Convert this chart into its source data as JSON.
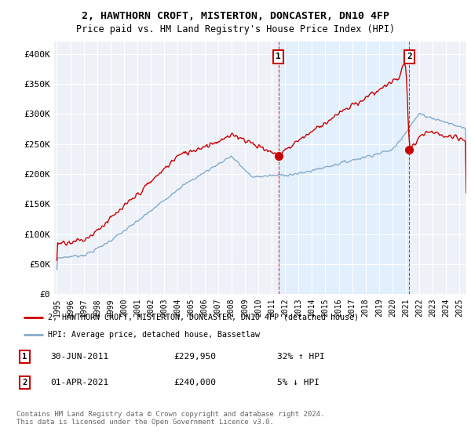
{
  "title": "2, HAWTHORN CROFT, MISTERTON, DONCASTER, DN10 4FP",
  "subtitle": "Price paid vs. HM Land Registry's House Price Index (HPI)",
  "ylabel_ticks": [
    "£0",
    "£50K",
    "£100K",
    "£150K",
    "£200K",
    "£250K",
    "£300K",
    "£350K",
    "£400K"
  ],
  "ytick_values": [
    0,
    50000,
    100000,
    150000,
    200000,
    250000,
    300000,
    350000,
    400000
  ],
  "ylim": [
    0,
    420000
  ],
  "xlim_start": 1994.8,
  "xlim_end": 2025.5,
  "red_line_color": "#cc0000",
  "blue_line_color": "#88aacc",
  "shade_color": "#ddeeff",
  "bg_color": "#eef2f8",
  "marker1_x": 2011.5,
  "marker1_y": 229950,
  "marker2_x": 2021.25,
  "marker2_y": 240000,
  "transaction1_date": "30-JUN-2011",
  "transaction1_price": "£229,950",
  "transaction1_hpi": "32% ↑ HPI",
  "transaction2_date": "01-APR-2021",
  "transaction2_price": "£240,000",
  "transaction2_hpi": "5% ↓ HPI",
  "legend_line1": "2, HAWTHORN CROFT, MISTERTON, DONCASTER, DN10 4FP (detached house)",
  "legend_line2": "HPI: Average price, detached house, Bassetlaw",
  "footer": "Contains HM Land Registry data © Crown copyright and database right 2024.\nThis data is licensed under the Open Government Licence v3.0."
}
